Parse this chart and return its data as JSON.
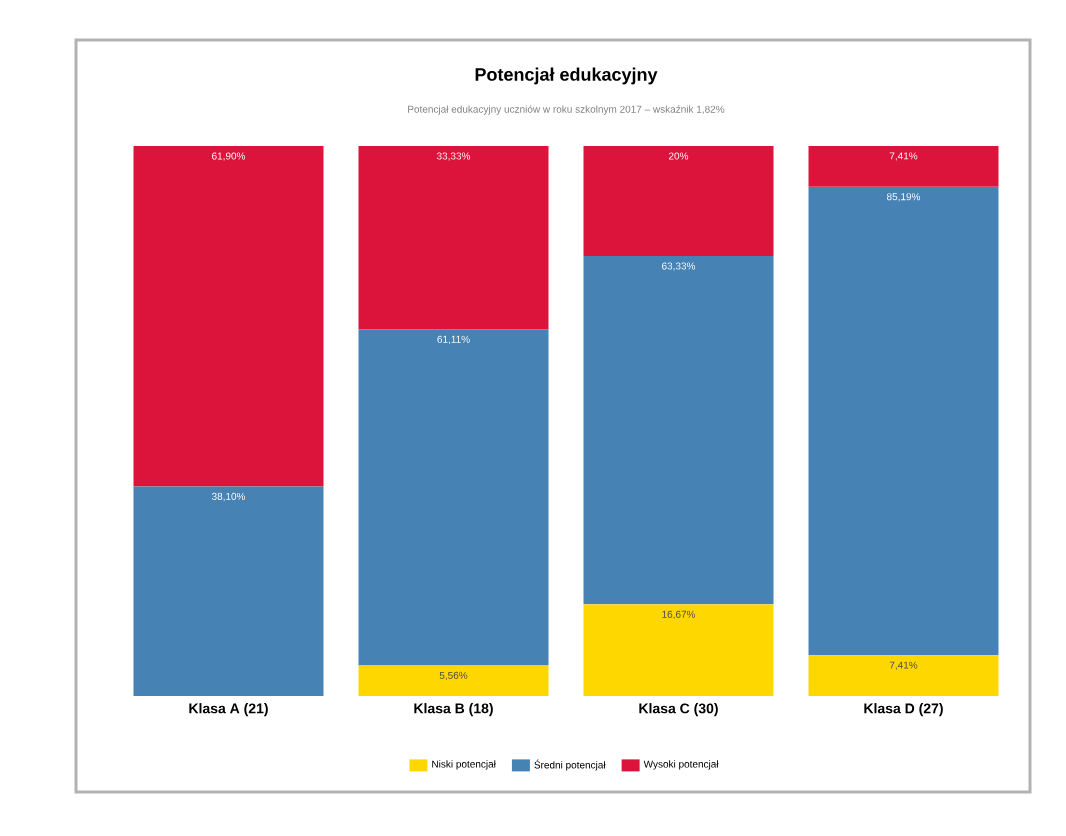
{
  "chart_data": {
    "type": "bar",
    "stacked": true,
    "title": "Potencjał edukacyjny",
    "subtitle": "Potencjał edukacyjny uczniów w roku szkolnym 2017 – wskaźnik 1,82%",
    "categories": [
      "Klasa A (21)",
      "Klasa B (18)",
      "Klasa C (30)",
      "Klasa D (27)"
    ],
    "series": [
      {
        "name": "Niski potencjał",
        "color": "#ffd700",
        "values": [
          0,
          5.56,
          16.67,
          7.41
        ],
        "value_labels": [
          null,
          "5,56%",
          "16,67%",
          "7,41%"
        ]
      },
      {
        "name": "Średni potencjał",
        "color": "#4682b4",
        "values": [
          38.1,
          61.11,
          63.33,
          85.19
        ],
        "value_labels": [
          "38,10%",
          "61,11%",
          "63,33%",
          "85,19%"
        ]
      },
      {
        "name": "Wysoki potencjał",
        "color": "#dc143c",
        "values": [
          61.9,
          33.33,
          20.0,
          7.41
        ],
        "value_labels": [
          "61,90%",
          "33,33%",
          "20%",
          "7,41%"
        ]
      }
    ],
    "legend": "bottom"
  }
}
